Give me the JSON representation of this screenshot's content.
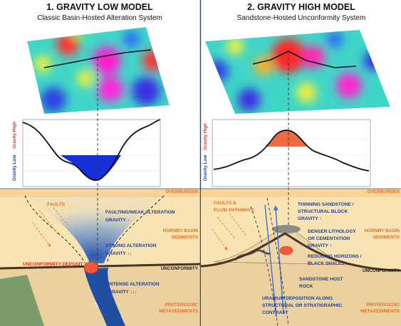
{
  "left": {
    "title": "1. GRAVITY LOW MODEL",
    "subtitle": "Classic Basin-Hosted Alteration System",
    "profile": {
      "high_label": "Gravity High",
      "low_label": "Gravity Low"
    },
    "layers": {
      "overburden": "OVERBURDEN",
      "basin": [
        "HORNBY BASIN",
        "SEDIMENTS"
      ],
      "unconformity": "UNCONFORMITY",
      "basement": [
        "PROTEROZOIC",
        "METASEDIMENTS"
      ]
    },
    "annotations": [
      {
        "lines": [
          "FAULTS"
        ]
      },
      {
        "lines": [
          "FAULTING/WEAK ALTERATION",
          "GRAVITY ↓"
        ]
      },
      {
        "lines": [
          "STRONG ALTERATION",
          "GRAVITY ↓↓"
        ]
      },
      {
        "lines": [
          "UNCONFORMITY DEPOSIT"
        ]
      },
      {
        "lines": [
          "INTENSE ALTERATION",
          "GRAVITY ↓↓↓"
        ]
      }
    ]
  },
  "right": {
    "title": "2. GRAVITY HIGH MODEL",
    "subtitle": "Sandstone-Hosted Unconformity System",
    "profile": {
      "high_label": "Gravity High",
      "low_label": "Gravity Low"
    },
    "layers": {
      "overburden": "OVERBURDEN",
      "basin": [
        "HORNBY BASIN",
        "SEDIMENTS"
      ],
      "unconformity": "UNCONFORMITY",
      "basement": [
        "PROTEROZOIC",
        "METASEDIMENTS"
      ]
    },
    "annotations": [
      {
        "lines": [
          "FAULTS &",
          "FLUID PATHWAYS"
        ]
      },
      {
        "lines": [
          "THINNING SANDSTONE /",
          "STRUCTURAL BLOCK",
          "GRAVITY ↑"
        ]
      },
      {
        "lines": [
          "DENSER LITHOLOGY",
          "OR CEMENTATION",
          "GRAVITY ↑"
        ]
      },
      {
        "lines": [
          "REDUCING HORIZONS /",
          "BLACK SHALES"
        ]
      },
      {
        "lines": [
          "SANDSTONE HOST",
          "ROCK"
        ]
      },
      {
        "lines": [
          "URANIUM DEPOSITION ALONG",
          "STRUCTURAL OR STRATIGRAPHIC",
          "CONTRAST"
        ]
      }
    ]
  }
}
